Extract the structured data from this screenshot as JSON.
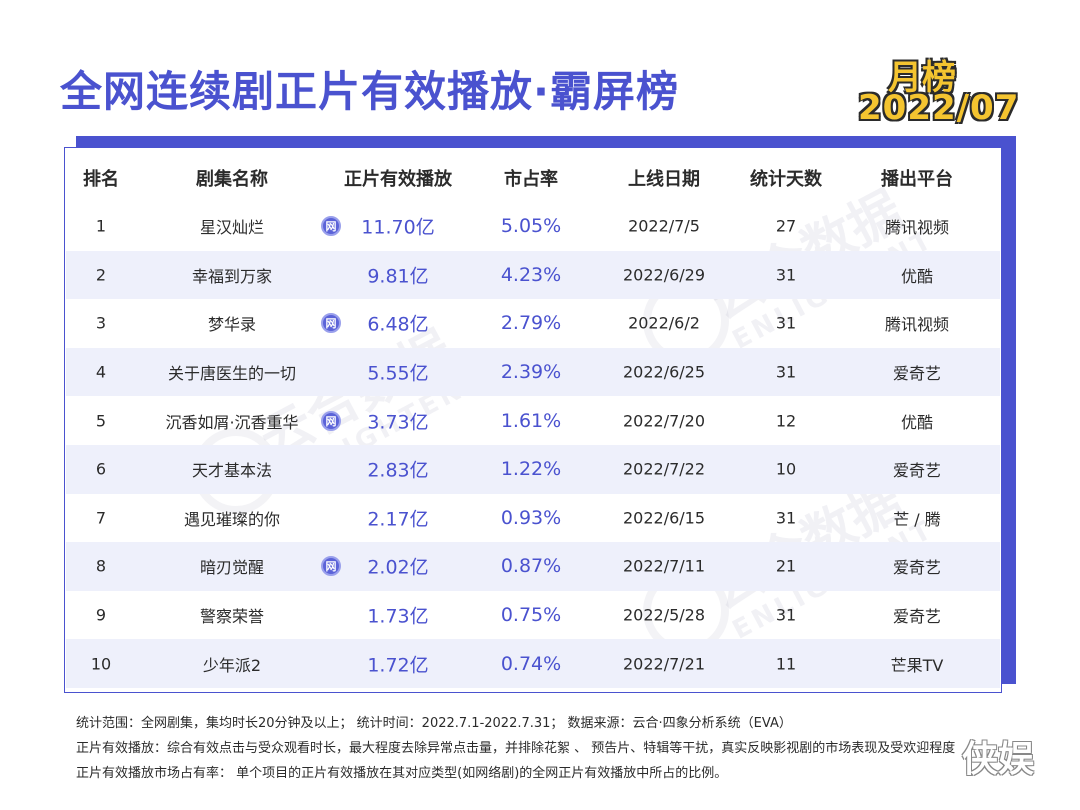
{
  "title": "全网连续剧正片有效播放·霸屏榜",
  "badge": {
    "month": "月榜",
    "date": "2022/07"
  },
  "watermark": {
    "cn": "云合数据",
    "en": "ENLIGHTENT"
  },
  "headers": [
    "排名",
    "剧集名称",
    "正片有效播放",
    "市占率",
    "上线日期",
    "统计天数",
    "播出平台"
  ],
  "net_icon_label": "网",
  "rows": [
    {
      "rank": "1",
      "name": "星汉灿烂",
      "net": true,
      "plays": "11.70亿",
      "share": "5.05%",
      "date": "2022/7/5",
      "days": "27",
      "platform": "腾讯视频"
    },
    {
      "rank": "2",
      "name": "幸福到万家",
      "net": false,
      "plays": "9.81亿",
      "share": "4.23%",
      "date": "2022/6/29",
      "days": "31",
      "platform": "优酷"
    },
    {
      "rank": "3",
      "name": "梦华录",
      "net": true,
      "plays": "6.48亿",
      "share": "2.79%",
      "date": "2022/6/2",
      "days": "31",
      "platform": "腾讯视频"
    },
    {
      "rank": "4",
      "name": "关于唐医生的一切",
      "net": false,
      "plays": "5.55亿",
      "share": "2.39%",
      "date": "2022/6/25",
      "days": "31",
      "platform": "爱奇艺"
    },
    {
      "rank": "5",
      "name": "沉香如屑·沉香重华",
      "net": true,
      "plays": "3.73亿",
      "share": "1.61%",
      "date": "2022/7/20",
      "days": "12",
      "platform": "优酷"
    },
    {
      "rank": "6",
      "name": "天才基本法",
      "net": false,
      "plays": "2.83亿",
      "share": "1.22%",
      "date": "2022/7/22",
      "days": "10",
      "platform": "爱奇艺"
    },
    {
      "rank": "7",
      "name": "遇见璀璨的你",
      "net": false,
      "plays": "2.17亿",
      "share": "0.93%",
      "date": "2022/6/15",
      "days": "31",
      "platform": "芒 / 腾"
    },
    {
      "rank": "8",
      "name": "暗刃觉醒",
      "net": true,
      "plays": "2.02亿",
      "share": "0.87%",
      "date": "2022/7/11",
      "days": "21",
      "platform": "爱奇艺"
    },
    {
      "rank": "9",
      "name": "警察荣誉",
      "net": false,
      "plays": "1.73亿",
      "share": "0.75%",
      "date": "2022/5/28",
      "days": "31",
      "platform": "爱奇艺"
    },
    {
      "rank": "10",
      "name": "少年派2",
      "net": false,
      "plays": "1.72亿",
      "share": "0.74%",
      "date": "2022/7/21",
      "days": "11",
      "platform": "芒果TV"
    }
  ],
  "footer": {
    "line1": "统计范围：全网剧集，集均时长20分钟及以上；     统计时间：2022.7.1-2022.7.31；     数据来源：云合·四象分析系统（EVA）",
    "line2": "正片有效播放：综合有效点击与受众观看时长，最大程度去除异常点击量，并排除花絮 、 预告片、特辑等干扰，真实反映影视剧的市场表现及受欢迎程度",
    "line3": "正片有效播放市场占有率： 单个项目的正片有效播放在其对应类型(如网络剧)的全网正片有效播放中所占的比例。"
  },
  "corner_mark": "侠娱"
}
